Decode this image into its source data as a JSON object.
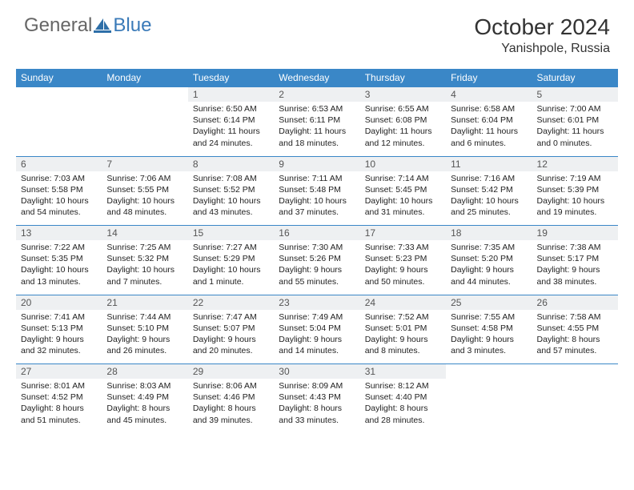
{
  "brand": {
    "part1": "General",
    "part2": "Blue"
  },
  "title": "October 2024",
  "location": "Yanishpole, Russia",
  "colors": {
    "header_bg": "#3a87c7",
    "header_fg": "#ffffff",
    "daynum_bg": "#eef0f2",
    "grid_line": "#3a87c7",
    "brand_gray": "#666666",
    "brand_blue": "#3a7ab8"
  },
  "day_names": [
    "Sunday",
    "Monday",
    "Tuesday",
    "Wednesday",
    "Thursday",
    "Friday",
    "Saturday"
  ],
  "weeks": [
    {
      "nums": [
        "",
        "",
        "1",
        "2",
        "3",
        "4",
        "5"
      ],
      "cells": [
        null,
        null,
        {
          "sunrise": "Sunrise: 6:50 AM",
          "sunset": "Sunset: 6:14 PM",
          "day1": "Daylight: 11 hours",
          "day2": "and 24 minutes."
        },
        {
          "sunrise": "Sunrise: 6:53 AM",
          "sunset": "Sunset: 6:11 PM",
          "day1": "Daylight: 11 hours",
          "day2": "and 18 minutes."
        },
        {
          "sunrise": "Sunrise: 6:55 AM",
          "sunset": "Sunset: 6:08 PM",
          "day1": "Daylight: 11 hours",
          "day2": "and 12 minutes."
        },
        {
          "sunrise": "Sunrise: 6:58 AM",
          "sunset": "Sunset: 6:04 PM",
          "day1": "Daylight: 11 hours",
          "day2": "and 6 minutes."
        },
        {
          "sunrise": "Sunrise: 7:00 AM",
          "sunset": "Sunset: 6:01 PM",
          "day1": "Daylight: 11 hours",
          "day2": "and 0 minutes."
        }
      ]
    },
    {
      "nums": [
        "6",
        "7",
        "8",
        "9",
        "10",
        "11",
        "12"
      ],
      "cells": [
        {
          "sunrise": "Sunrise: 7:03 AM",
          "sunset": "Sunset: 5:58 PM",
          "day1": "Daylight: 10 hours",
          "day2": "and 54 minutes."
        },
        {
          "sunrise": "Sunrise: 7:06 AM",
          "sunset": "Sunset: 5:55 PM",
          "day1": "Daylight: 10 hours",
          "day2": "and 48 minutes."
        },
        {
          "sunrise": "Sunrise: 7:08 AM",
          "sunset": "Sunset: 5:52 PM",
          "day1": "Daylight: 10 hours",
          "day2": "and 43 minutes."
        },
        {
          "sunrise": "Sunrise: 7:11 AM",
          "sunset": "Sunset: 5:48 PM",
          "day1": "Daylight: 10 hours",
          "day2": "and 37 minutes."
        },
        {
          "sunrise": "Sunrise: 7:14 AM",
          "sunset": "Sunset: 5:45 PM",
          "day1": "Daylight: 10 hours",
          "day2": "and 31 minutes."
        },
        {
          "sunrise": "Sunrise: 7:16 AM",
          "sunset": "Sunset: 5:42 PM",
          "day1": "Daylight: 10 hours",
          "day2": "and 25 minutes."
        },
        {
          "sunrise": "Sunrise: 7:19 AM",
          "sunset": "Sunset: 5:39 PM",
          "day1": "Daylight: 10 hours",
          "day2": "and 19 minutes."
        }
      ]
    },
    {
      "nums": [
        "13",
        "14",
        "15",
        "16",
        "17",
        "18",
        "19"
      ],
      "cells": [
        {
          "sunrise": "Sunrise: 7:22 AM",
          "sunset": "Sunset: 5:35 PM",
          "day1": "Daylight: 10 hours",
          "day2": "and 13 minutes."
        },
        {
          "sunrise": "Sunrise: 7:25 AM",
          "sunset": "Sunset: 5:32 PM",
          "day1": "Daylight: 10 hours",
          "day2": "and 7 minutes."
        },
        {
          "sunrise": "Sunrise: 7:27 AM",
          "sunset": "Sunset: 5:29 PM",
          "day1": "Daylight: 10 hours",
          "day2": "and 1 minute."
        },
        {
          "sunrise": "Sunrise: 7:30 AM",
          "sunset": "Sunset: 5:26 PM",
          "day1": "Daylight: 9 hours",
          "day2": "and 55 minutes."
        },
        {
          "sunrise": "Sunrise: 7:33 AM",
          "sunset": "Sunset: 5:23 PM",
          "day1": "Daylight: 9 hours",
          "day2": "and 50 minutes."
        },
        {
          "sunrise": "Sunrise: 7:35 AM",
          "sunset": "Sunset: 5:20 PM",
          "day1": "Daylight: 9 hours",
          "day2": "and 44 minutes."
        },
        {
          "sunrise": "Sunrise: 7:38 AM",
          "sunset": "Sunset: 5:17 PM",
          "day1": "Daylight: 9 hours",
          "day2": "and 38 minutes."
        }
      ]
    },
    {
      "nums": [
        "20",
        "21",
        "22",
        "23",
        "24",
        "25",
        "26"
      ],
      "cells": [
        {
          "sunrise": "Sunrise: 7:41 AM",
          "sunset": "Sunset: 5:13 PM",
          "day1": "Daylight: 9 hours",
          "day2": "and 32 minutes."
        },
        {
          "sunrise": "Sunrise: 7:44 AM",
          "sunset": "Sunset: 5:10 PM",
          "day1": "Daylight: 9 hours",
          "day2": "and 26 minutes."
        },
        {
          "sunrise": "Sunrise: 7:47 AM",
          "sunset": "Sunset: 5:07 PM",
          "day1": "Daylight: 9 hours",
          "day2": "and 20 minutes."
        },
        {
          "sunrise": "Sunrise: 7:49 AM",
          "sunset": "Sunset: 5:04 PM",
          "day1": "Daylight: 9 hours",
          "day2": "and 14 minutes."
        },
        {
          "sunrise": "Sunrise: 7:52 AM",
          "sunset": "Sunset: 5:01 PM",
          "day1": "Daylight: 9 hours",
          "day2": "and 8 minutes."
        },
        {
          "sunrise": "Sunrise: 7:55 AM",
          "sunset": "Sunset: 4:58 PM",
          "day1": "Daylight: 9 hours",
          "day2": "and 3 minutes."
        },
        {
          "sunrise": "Sunrise: 7:58 AM",
          "sunset": "Sunset: 4:55 PM",
          "day1": "Daylight: 8 hours",
          "day2": "and 57 minutes."
        }
      ]
    },
    {
      "nums": [
        "27",
        "28",
        "29",
        "30",
        "31",
        "",
        ""
      ],
      "cells": [
        {
          "sunrise": "Sunrise: 8:01 AM",
          "sunset": "Sunset: 4:52 PM",
          "day1": "Daylight: 8 hours",
          "day2": "and 51 minutes."
        },
        {
          "sunrise": "Sunrise: 8:03 AM",
          "sunset": "Sunset: 4:49 PM",
          "day1": "Daylight: 8 hours",
          "day2": "and 45 minutes."
        },
        {
          "sunrise": "Sunrise: 8:06 AM",
          "sunset": "Sunset: 4:46 PM",
          "day1": "Daylight: 8 hours",
          "day2": "and 39 minutes."
        },
        {
          "sunrise": "Sunrise: 8:09 AM",
          "sunset": "Sunset: 4:43 PM",
          "day1": "Daylight: 8 hours",
          "day2": "and 33 minutes."
        },
        {
          "sunrise": "Sunrise: 8:12 AM",
          "sunset": "Sunset: 4:40 PM",
          "day1": "Daylight: 8 hours",
          "day2": "and 28 minutes."
        },
        null,
        null
      ]
    }
  ]
}
